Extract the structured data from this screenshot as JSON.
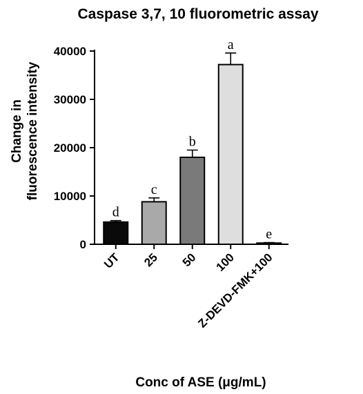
{
  "chart_data": {
    "type": "bar",
    "title": "Caspase 3,7, 10 fluorometric assay",
    "xlabel": "Conc of ASE (μg/mL)",
    "ylabel_lines": [
      "Change in",
      "fluorescence intensity"
    ],
    "ylim": [
      0,
      40000
    ],
    "yticks": [
      0,
      10000,
      20000,
      30000,
      40000
    ],
    "ytick_labels": [
      "0",
      "10000",
      "20000",
      "30000",
      "40000"
    ],
    "grid": false,
    "categories": [
      "UT",
      "25",
      "50",
      "100",
      "Z-DEVD-FMK+100"
    ],
    "values": [
      4600,
      8800,
      18000,
      37200,
      250
    ],
    "errors": [
      300,
      800,
      1500,
      2400,
      100
    ],
    "significance": [
      "d",
      "c",
      "b",
      "a",
      "e"
    ],
    "colors": [
      "#0a0a0a",
      "#a9a9a9",
      "#7a7a7a",
      "#dedede",
      "#bdbdbd"
    ]
  }
}
